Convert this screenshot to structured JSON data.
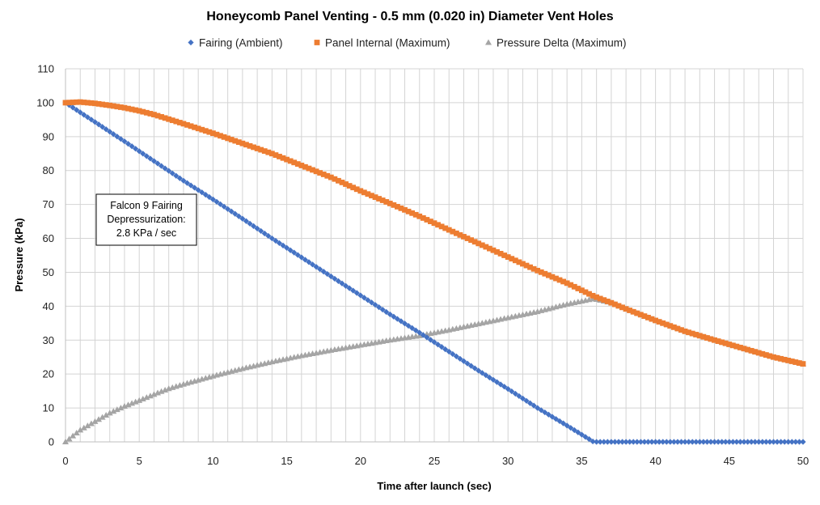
{
  "chart_data": {
    "type": "scatter",
    "title": "Honeycomb Panel Venting - 0.5 mm (0.020 in) Diameter Vent Holes",
    "xlabel": "Time after launch (sec)",
    "ylabel": "Pressure (kPa)",
    "xlim": [
      0,
      50
    ],
    "ylim": [
      0,
      110
    ],
    "xticks": [
      0,
      5,
      10,
      15,
      20,
      25,
      30,
      35,
      40,
      45,
      50
    ],
    "yticks": [
      0,
      10,
      20,
      30,
      40,
      50,
      60,
      70,
      80,
      90,
      100,
      110
    ],
    "grid": true,
    "legend_position": "top",
    "annotation": {
      "lines": [
        "Falcon 9 Fairing",
        "Depressurization:",
        "2.8 KPa / sec"
      ]
    },
    "series": [
      {
        "name": "Fairing (Ambient)",
        "color": "#4472C4",
        "marker": "diamond",
        "points": [
          [
            0,
            100
          ],
          [
            2,
            94.3
          ],
          [
            4,
            88.6
          ],
          [
            6,
            82.8
          ],
          [
            8,
            77
          ],
          [
            10,
            71.5
          ],
          [
            12,
            65.8
          ],
          [
            14,
            60
          ],
          [
            16,
            54.4
          ],
          [
            18,
            48.8
          ],
          [
            20,
            43.2
          ],
          [
            22,
            37.6
          ],
          [
            24,
            32.2
          ],
          [
            26,
            26.6
          ],
          [
            28,
            21
          ],
          [
            30,
            15.6
          ],
          [
            32,
            10
          ],
          [
            34,
            4.8
          ],
          [
            35.8,
            0
          ],
          [
            38,
            0
          ],
          [
            40,
            0
          ],
          [
            42,
            0
          ],
          [
            44,
            0
          ],
          [
            46,
            0
          ],
          [
            48,
            0
          ],
          [
            50,
            0
          ]
        ]
      },
      {
        "name": "Panel Internal (Maximum)",
        "color": "#ED7D31",
        "marker": "square",
        "points": [
          [
            0,
            100
          ],
          [
            1,
            100.2
          ],
          [
            2,
            99.8
          ],
          [
            3,
            99.2
          ],
          [
            4,
            98.5
          ],
          [
            5,
            97.6
          ],
          [
            6,
            96.5
          ],
          [
            8,
            93.8
          ],
          [
            10,
            91
          ],
          [
            12,
            88
          ],
          [
            14,
            85
          ],
          [
            16,
            81.5
          ],
          [
            18,
            78
          ],
          [
            20,
            74
          ],
          [
            22,
            70.3
          ],
          [
            24,
            66.5
          ],
          [
            26,
            62.5
          ],
          [
            28,
            58.5
          ],
          [
            30,
            54.5
          ],
          [
            32,
            50.5
          ],
          [
            34,
            46.8
          ],
          [
            35.8,
            43
          ],
          [
            37,
            41
          ],
          [
            38,
            39.2
          ],
          [
            40,
            35.8
          ],
          [
            42,
            32.6
          ],
          [
            44,
            30
          ],
          [
            46,
            27.5
          ],
          [
            48,
            25
          ],
          [
            50,
            23
          ]
        ]
      },
      {
        "name": "Pressure Delta (Maximum)",
        "color": "#A5A5A5",
        "marker": "triangle",
        "points": [
          [
            0,
            0
          ],
          [
            1,
            3.5
          ],
          [
            2,
            6
          ],
          [
            3,
            8.5
          ],
          [
            4,
            10.5
          ],
          [
            5,
            12.2
          ],
          [
            6,
            14
          ],
          [
            7,
            15.7
          ],
          [
            8,
            17
          ],
          [
            10,
            19.4
          ],
          [
            12,
            21.6
          ],
          [
            14,
            23.6
          ],
          [
            16,
            25.4
          ],
          [
            18,
            27
          ],
          [
            20,
            28.5
          ],
          [
            22,
            30
          ],
          [
            24,
            31.3
          ],
          [
            26,
            33
          ],
          [
            28,
            34.8
          ],
          [
            30,
            36.6
          ],
          [
            32,
            38.4
          ],
          [
            34,
            40.6
          ],
          [
            35.8,
            42.2
          ],
          [
            37,
            41
          ],
          [
            38,
            39.2
          ],
          [
            40,
            35.8
          ],
          [
            42,
            32.6
          ],
          [
            44,
            30
          ],
          [
            46,
            27.5
          ],
          [
            48,
            25
          ],
          [
            50,
            23
          ]
        ]
      }
    ]
  }
}
